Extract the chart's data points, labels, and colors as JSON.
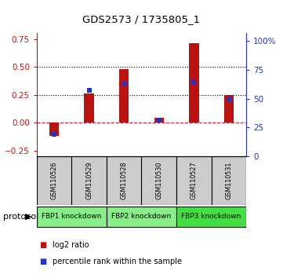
{
  "title": "GDS2573 / 1735805_1",
  "samples": [
    "GSM110526",
    "GSM110529",
    "GSM110528",
    "GSM110530",
    "GSM110527",
    "GSM110531"
  ],
  "log2_ratio": [
    -0.12,
    0.26,
    0.48,
    0.04,
    0.71,
    0.25
  ],
  "percentile_rank": [
    19,
    57,
    63,
    31,
    65,
    50
  ],
  "left_ylim": [
    -0.3,
    0.8
  ],
  "left_yticks": [
    -0.25,
    0.0,
    0.25,
    0.5,
    0.75
  ],
  "right_ylim": [
    0,
    106.67
  ],
  "right_yticks": [
    0,
    25,
    50,
    75,
    100
  ],
  "right_yticklabels": [
    "0",
    "25",
    "50",
    "75",
    "100%"
  ],
  "hlines": [
    0.25,
    0.5
  ],
  "bar_color": "#bb1111",
  "dot_color": "#2233cc",
  "zero_line_color": "#cc2222",
  "protocol_groups": [
    {
      "label": "FBP1 knockdown",
      "start": 0,
      "end": 1,
      "color": "#88ee88"
    },
    {
      "label": "FBP2 knockdown",
      "start": 2,
      "end": 3,
      "color": "#88ee88"
    },
    {
      "label": "FBP3 knockdown",
      "start": 4,
      "end": 5,
      "color": "#44dd44"
    }
  ],
  "legend_bar_label": "log2 ratio",
  "legend_dot_label": "percentile rank within the sample",
  "protocol_label": "protocol",
  "bar_width": 0.28,
  "dot_size": 14
}
